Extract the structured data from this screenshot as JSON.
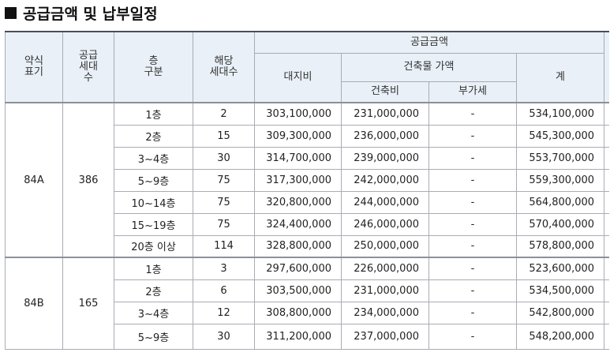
{
  "page": {
    "title": "공급금액 및 납부일정"
  },
  "table": {
    "headers": {
      "type": "약식\n표기",
      "supply_units": "공급\n세대\n수",
      "floor": "층\n구분",
      "unit_count": "해당\n세대수",
      "supply_amount": "공급금액",
      "land_cost": "대지비",
      "building_price": "건축물 가액",
      "construction_cost": "건축비",
      "vat": "부가세",
      "total": "계"
    },
    "groups": [
      {
        "type": "84A",
        "supply_units": "386",
        "rows": [
          {
            "floor": "1층",
            "units": "2",
            "land": "303,100,000",
            "construction": "231,000,000",
            "vat": "-",
            "total": "534,100,000"
          },
          {
            "floor": "2층",
            "units": "15",
            "land": "309,300,000",
            "construction": "236,000,000",
            "vat": "-",
            "total": "545,300,000"
          },
          {
            "floor": "3~4층",
            "units": "30",
            "land": "314,700,000",
            "construction": "239,000,000",
            "vat": "-",
            "total": "553,700,000"
          },
          {
            "floor": "5~9층",
            "units": "75",
            "land": "317,300,000",
            "construction": "242,000,000",
            "vat": "-",
            "total": "559,300,000"
          },
          {
            "floor": "10~14층",
            "units": "75",
            "land": "320,800,000",
            "construction": "244,000,000",
            "vat": "-",
            "total": "564,800,000"
          },
          {
            "floor": "15~19층",
            "units": "75",
            "land": "324,400,000",
            "construction": "246,000,000",
            "vat": "-",
            "total": "570,400,000"
          },
          {
            "floor": "20층 이상",
            "units": "114",
            "land": "328,800,000",
            "construction": "250,000,000",
            "vat": "-",
            "total": "578,800,000"
          }
        ]
      },
      {
        "type": "84B",
        "supply_units": "165",
        "rows": [
          {
            "floor": "1층",
            "units": "3",
            "land": "297,600,000",
            "construction": "226,000,000",
            "vat": "-",
            "total": "523,600,000"
          },
          {
            "floor": "2층",
            "units": "6",
            "land": "303,500,000",
            "construction": "231,000,000",
            "vat": "-",
            "total": "534,500,000"
          },
          {
            "floor": "3~4층",
            "units": "12",
            "land": "308,800,000",
            "construction": "234,000,000",
            "vat": "-",
            "total": "542,800,000"
          },
          {
            "floor": "5~9층",
            "units": "30",
            "land": "311,200,000",
            "construction": "237,000,000",
            "vat": "-",
            "total": "548,200,000"
          }
        ]
      }
    ]
  }
}
